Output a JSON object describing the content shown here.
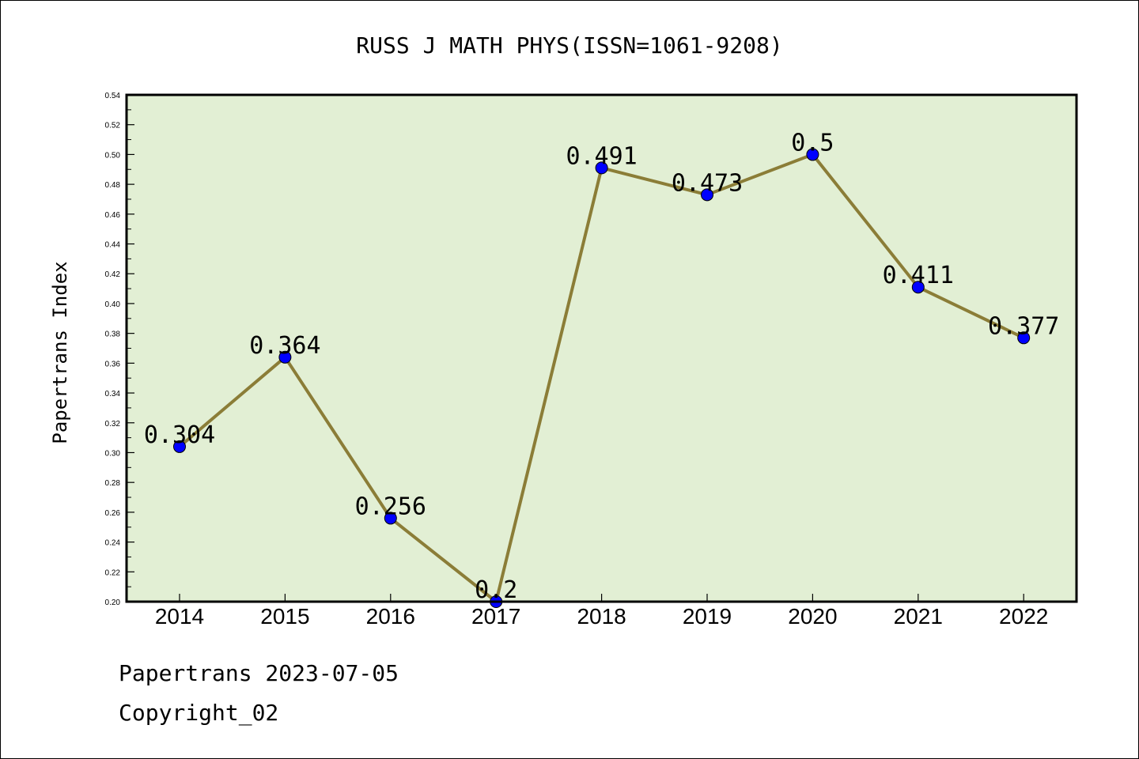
{
  "chart_data": {
    "type": "line",
    "title": "RUSS J MATH PHYS(ISSN=1061-9208)",
    "ylabel": "Papertrans Index",
    "xlabel": "",
    "categories": [
      "2014",
      "2015",
      "2016",
      "2017",
      "2018",
      "2019",
      "2020",
      "2021",
      "2022"
    ],
    "values": [
      0.304,
      0.364,
      0.256,
      0.2,
      0.491,
      0.473,
      0.5,
      0.411,
      0.377
    ],
    "value_labels": [
      "0.304",
      "0.364",
      "0.256",
      "0.2",
      "0.491",
      "0.473",
      "0.5",
      "0.411",
      "0.377"
    ],
    "ylim": [
      0.2,
      0.54
    ],
    "yticks": [
      "0.20",
      "0.22",
      "0.24",
      "0.26",
      "0.28",
      "0.30",
      "0.32",
      "0.34",
      "0.36",
      "0.38",
      "0.40",
      "0.42",
      "0.44",
      "0.46",
      "0.48",
      "0.50",
      "0.52",
      "0.54"
    ],
    "grid": false,
    "colors": {
      "plot_background": "#e2efd4",
      "line": "#8b7d37",
      "marker": "#0000ff"
    }
  },
  "footer": {
    "line1": "Papertrans 2023-07-05",
    "line2": "Copyright_02"
  }
}
